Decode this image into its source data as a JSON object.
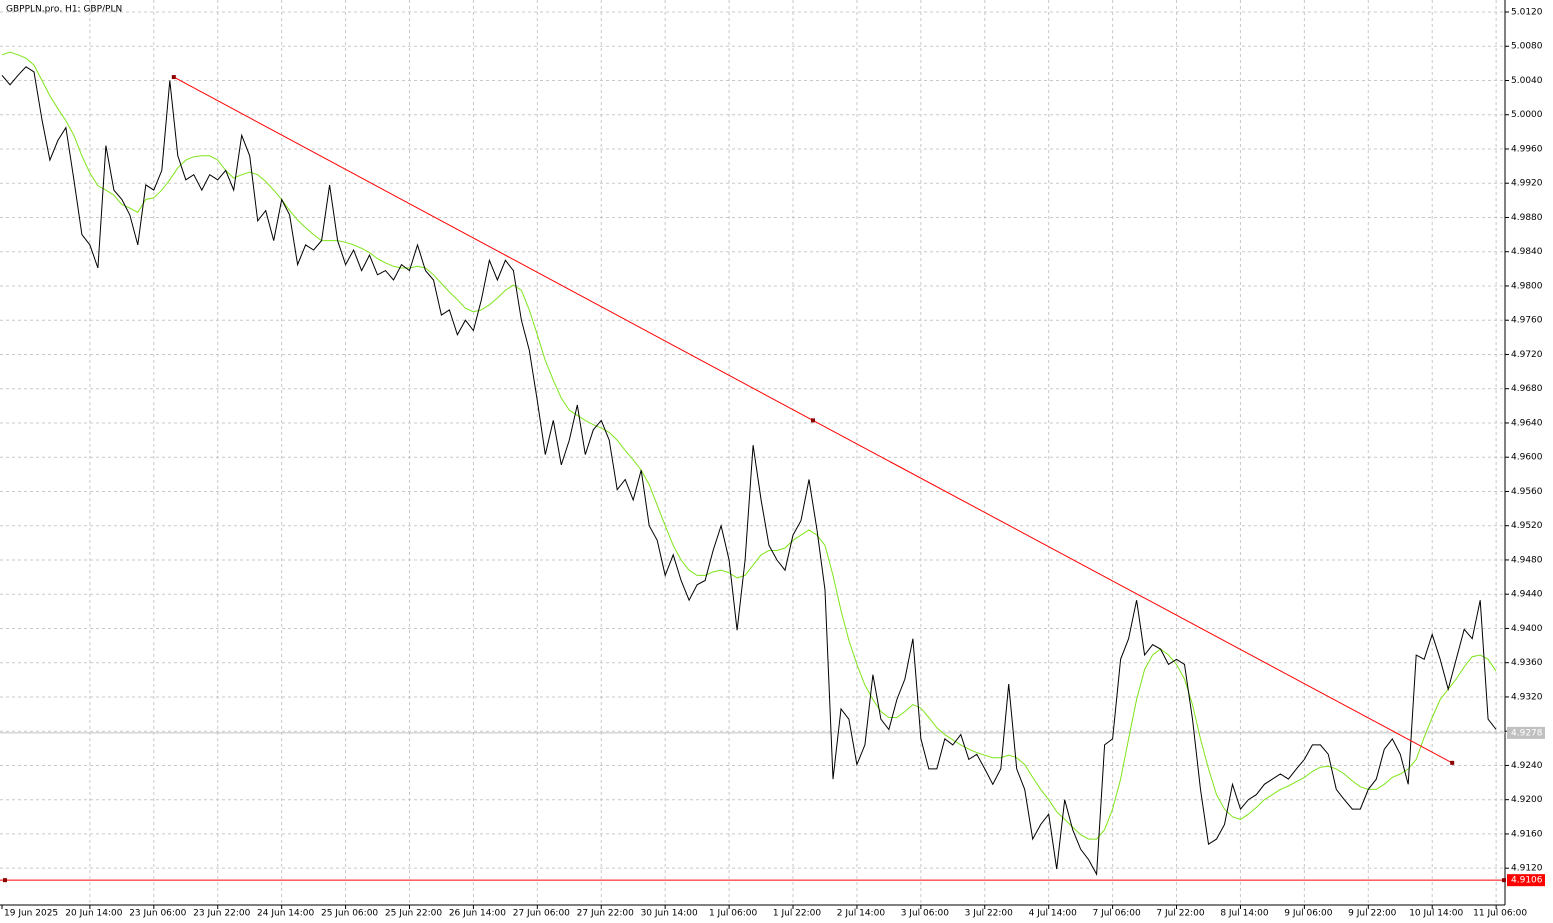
{
  "chart_data": {
    "type": "line",
    "title": "GBPPLN.pro, H1:  GBP/PLN",
    "categories": [
      "19 Jun 2025",
      null,
      null,
      null,
      null,
      null,
      null,
      null,
      null,
      null,
      null,
      "20 Jun 14:00",
      null,
      null,
      null,
      null,
      null,
      null,
      null,
      "23 Jun 06:00",
      null,
      null,
      null,
      null,
      null,
      null,
      null,
      "23 Jun 22:00",
      null,
      null,
      null,
      null,
      null,
      null,
      null,
      "24 Jun 14:00",
      null,
      null,
      null,
      null,
      null,
      null,
      null,
      "25 Jun 06:00",
      null,
      null,
      null,
      null,
      null,
      null,
      null,
      "25 Jun 22:00",
      null,
      null,
      null,
      null,
      null,
      null,
      null,
      "26 Jun 14:00",
      null,
      null,
      null,
      null,
      null,
      null,
      null,
      "27 Jun 06:00",
      null,
      null,
      null,
      null,
      null,
      null,
      null,
      "27 Jun 22:00",
      null,
      null,
      null,
      null,
      null,
      null,
      null,
      "30 Jun 14:00",
      null,
      null,
      null,
      null,
      null,
      null,
      null,
      "1 Jul 06:00",
      null,
      null,
      null,
      null,
      null,
      null,
      null,
      "1 Jul 22:00",
      null,
      null,
      null,
      null,
      null,
      null,
      null,
      "2 Jul 14:00",
      null,
      null,
      null,
      null,
      null,
      null,
      null,
      "3 Jul 06:00",
      null,
      null,
      null,
      null,
      null,
      null,
      null,
      "3 Jul 22:00",
      null,
      null,
      null,
      null,
      null,
      null,
      null,
      "4 Jul 14:00",
      null,
      null,
      null,
      null,
      null,
      null,
      null,
      "7 Jul 06:00",
      null,
      null,
      null,
      null,
      null,
      null,
      null,
      "7 Jul 22:00",
      null,
      null,
      null,
      null,
      null,
      null,
      null,
      "8 Jul 14:00",
      null,
      null,
      null,
      null,
      null,
      null,
      null,
      "9 Jul 06:00",
      null,
      null,
      null,
      null,
      null,
      null,
      null,
      "9 Jul 22:00",
      null,
      null,
      null,
      null,
      null,
      null,
      null,
      "10 Jul 14:00",
      null,
      null,
      null,
      null,
      null,
      null,
      null,
      "11 Jul 06:00"
    ],
    "series": [
      {
        "color": "#000000",
        "values": [
          5.0046,
          5.0035,
          5.0046,
          5.0056,
          5.005,
          4.9994,
          4.9947,
          4.997,
          4.9985,
          4.9924,
          4.986,
          4.9848,
          4.9821,
          4.9964,
          4.9912,
          4.9901,
          4.9883,
          4.9848,
          4.9918,
          4.9912,
          4.9935,
          5.004,
          4.9952,
          4.9924,
          4.993,
          4.9912,
          4.993,
          4.9924,
          4.9935,
          4.9912,
          4.9976,
          4.9952,
          4.9876,
          4.9888,
          4.9853,
          4.9901,
          4.9883,
          4.9825,
          4.9848,
          4.9842,
          4.9853,
          4.9918,
          4.9853,
          4.9825,
          4.9842,
          4.9818,
          4.9836,
          4.9813,
          4.9818,
          4.9807,
          4.9825,
          4.9818,
          4.9848,
          4.9818,
          4.9807,
          4.9766,
          4.9772,
          4.9743,
          4.976,
          4.9748,
          4.9784,
          4.983,
          4.9807,
          4.983,
          4.9818,
          4.976,
          4.9725,
          4.9666,
          4.9603,
          4.9643,
          4.9591,
          4.962,
          4.9661,
          4.9603,
          4.9632,
          4.9643,
          4.962,
          4.9562,
          4.9574,
          4.955,
          4.9585,
          4.952,
          4.9503,
          4.9462,
          4.9486,
          4.9456,
          4.9433,
          4.9451,
          4.9456,
          4.9491,
          4.952,
          4.948,
          4.9398,
          4.948,
          4.9614,
          4.955,
          4.9497,
          4.948,
          4.9468,
          4.9509,
          4.9526,
          4.9574,
          4.9515,
          4.9445,
          4.9224,
          4.9306,
          4.9294,
          4.9241,
          4.9264,
          4.9346,
          4.9294,
          4.9282,
          4.9317,
          4.9341,
          4.9388,
          4.9271,
          4.9236,
          4.9236,
          4.9271,
          4.9264,
          4.9276,
          4.9247,
          4.9253,
          4.9236,
          4.9218,
          4.9236,
          4.9335,
          4.9236,
          4.9212,
          4.9154,
          4.9171,
          4.9183,
          4.9119,
          4.92,
          4.9165,
          4.9142,
          4.913,
          4.9113,
          4.9264,
          4.9271,
          4.9364,
          4.9388,
          4.9433,
          4.9369,
          4.9381,
          4.9376,
          4.9358,
          4.9364,
          4.9358,
          4.9294,
          4.9212,
          4.9148,
          4.9154,
          4.9171,
          4.9218,
          4.9189,
          4.92,
          4.9206,
          4.9218,
          4.9224,
          4.923,
          4.9224,
          4.9236,
          4.9247,
          4.9264,
          4.9264,
          4.9253,
          4.9212,
          4.92,
          4.9189,
          4.9189,
          4.9212,
          4.9224,
          4.9259,
          4.9271,
          4.9253,
          4.9218,
          4.9369,
          4.9364,
          4.9393,
          4.9364,
          4.9329,
          4.9364,
          4.9399,
          4.9388,
          4.9433,
          4.9294,
          4.9282
        ]
      },
      {
        "color": "#7fe51a",
        "values": [
          5.007,
          5.0073,
          5.007,
          5.0066,
          5.0058,
          5.004,
          5.0022,
          5.0007,
          4.9993,
          4.9976,
          4.9952,
          4.9932,
          4.9917,
          4.9912,
          4.9906,
          4.9895,
          4.9891,
          4.9886,
          4.9901,
          4.9903,
          4.9912,
          4.9924,
          4.9938,
          4.9947,
          4.9951,
          4.9952,
          4.9952,
          4.9947,
          4.9935,
          4.9926,
          4.993,
          4.9933,
          4.993,
          4.9922,
          4.9912,
          4.9901,
          4.9888,
          4.9877,
          4.9868,
          4.986,
          4.9853,
          4.9853,
          4.9853,
          4.9851,
          4.9848,
          4.9844,
          4.9839,
          4.9832,
          4.9827,
          4.9823,
          4.9821,
          4.9821,
          4.9823,
          4.9821,
          4.9813,
          4.9803,
          4.9793,
          4.9784,
          4.9774,
          4.977,
          4.9772,
          4.9778,
          4.9786,
          4.9795,
          4.9801,
          4.9795,
          4.9772,
          4.9743,
          4.9713,
          4.969,
          4.9669,
          4.9655,
          4.9649,
          4.9643,
          4.9638,
          4.9634,
          4.9629,
          4.962,
          4.9608,
          4.9597,
          4.9585,
          4.9568,
          4.9544,
          4.952,
          4.9497,
          4.948,
          4.9468,
          4.9462,
          4.9462,
          4.9466,
          4.9468,
          4.9465,
          4.9459,
          4.9462,
          4.9474,
          4.9486,
          4.9491,
          4.9491,
          4.9494,
          4.9503,
          4.9509,
          4.9515,
          4.9509,
          4.9497,
          4.9462,
          4.9421,
          4.9386,
          4.9358,
          4.9334,
          4.9317,
          4.9303,
          4.9296,
          4.9296,
          4.9303,
          4.9311,
          4.9307,
          4.9296,
          4.9284,
          4.9276,
          4.927,
          4.9264,
          4.9259,
          4.9255,
          4.9252,
          4.9249,
          4.9249,
          4.9252,
          4.9249,
          4.9241,
          4.9226,
          4.9212,
          4.92,
          4.9186,
          4.9177,
          4.9168,
          4.9159,
          4.9154,
          4.9154,
          4.9165,
          4.9189,
          4.9224,
          4.9271,
          4.9317,
          4.9352,
          4.9369,
          4.9376,
          4.9369,
          4.9358,
          4.9341,
          4.9311,
          4.9271,
          4.9236,
          4.9206,
          4.9189,
          4.918,
          4.9177,
          4.9183,
          4.9191,
          4.92,
          4.9206,
          4.9212,
          4.9216,
          4.9221,
          4.9226,
          4.9233,
          4.9238,
          4.9239,
          4.9236,
          4.923,
          4.9222,
          4.9215,
          4.9212,
          4.9212,
          4.9218,
          4.9226,
          4.923,
          4.9236,
          4.9247,
          4.9273,
          4.9296,
          4.9317,
          4.9329,
          4.9341,
          4.9355,
          4.9367,
          4.9369,
          4.9364,
          4.935
        ]
      }
    ],
    "trendline": {
      "color": "#ff0000",
      "values": [
        5.0044,
        4.9643,
        4.9243
      ]
    },
    "hlines": [
      {
        "value": 4.9106,
        "color": "#ff0000"
      },
      {
        "value": 4.9278,
        "color": "#c0c0c0"
      }
    ],
    "ylim": [
      4.9077,
      5.0134
    ],
    "yticks": [
      {
        "value": 4.912,
        "label": "4.9120"
      },
      {
        "value": 4.916,
        "label": "4.9160"
      },
      {
        "value": 4.92,
        "label": "4.9200"
      },
      {
        "value": 4.924,
        "label": "4.9240"
      },
      {
        "value": 4.928,
        "label": "4.9280"
      },
      {
        "value": 4.932,
        "label": "4.9320"
      },
      {
        "value": 4.936,
        "label": "4.9360"
      },
      {
        "value": 4.94,
        "label": "4.9400"
      },
      {
        "value": 4.944,
        "label": "4.9440"
      },
      {
        "value": 4.948,
        "label": "4.9480"
      },
      {
        "value": 4.952,
        "label": "4.9520"
      },
      {
        "value": 4.956,
        "label": "4.9560"
      },
      {
        "value": 4.96,
        "label": "4.9600"
      },
      {
        "value": 4.964,
        "label": "4.9640"
      },
      {
        "value": 4.968,
        "label": "4.9680"
      },
      {
        "value": 4.972,
        "label": "4.9720"
      },
      {
        "value": 4.976,
        "label": "4.9760"
      },
      {
        "value": 4.98,
        "label": "4.9800"
      },
      {
        "value": 4.984,
        "label": "4.9840"
      },
      {
        "value": 4.988,
        "label": "4.9880"
      },
      {
        "value": 4.992,
        "label": "4.9920"
      },
      {
        "value": 4.996,
        "label": "4.9960"
      },
      {
        "value": 5.0,
        "label": "5.0000"
      },
      {
        "value": 5.004,
        "label": "5.0040"
      },
      {
        "value": 5.008,
        "label": "5.0080"
      },
      {
        "value": 5.012,
        "label": "5.0120"
      }
    ],
    "grid": true
  }
}
